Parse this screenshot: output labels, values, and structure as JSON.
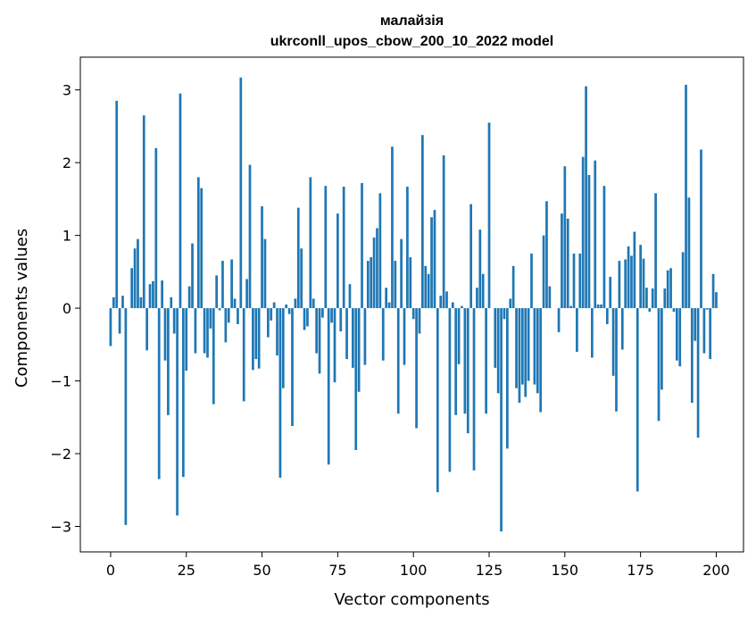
{
  "chart_data": {
    "type": "bar",
    "title_line1": "малайзія",
    "title_line2": "ukrconll_upos_cbow_200_10_2022 model",
    "xlabel": "Vector components",
    "ylabel": "Components values",
    "xlim": [
      -10,
      209
    ],
    "ylim": [
      -3.35,
      3.45
    ],
    "xticks": [
      0,
      25,
      50,
      75,
      100,
      125,
      150,
      175,
      200
    ],
    "yticks": [
      -3,
      -2,
      -1,
      0,
      1,
      2,
      3
    ],
    "xtick_labels": [
      "0",
      "25",
      "50",
      "75",
      "100",
      "125",
      "150",
      "175",
      "200"
    ],
    "ytick_labels": [
      "−3",
      "−2",
      "−1",
      "0",
      "1",
      "2",
      "3"
    ],
    "grid": false,
    "bar_color": "#1f77b4",
    "values": [
      -0.52,
      0.15,
      2.85,
      -0.35,
      0.17,
      -2.98,
      0.0,
      0.55,
      0.82,
      0.95,
      0.15,
      2.65,
      -0.58,
      0.33,
      0.37,
      2.2,
      -2.35,
      0.38,
      -0.72,
      -1.47,
      0.15,
      -0.35,
      -2.85,
      2.95,
      -2.32,
      -0.86,
      0.3,
      0.89,
      -0.62,
      1.8,
      1.65,
      -0.62,
      -0.68,
      -0.28,
      -1.32,
      0.45,
      -0.03,
      0.65,
      -0.47,
      -0.2,
      0.67,
      0.13,
      -0.22,
      3.17,
      -1.28,
      0.4,
      1.97,
      -0.85,
      -0.7,
      -0.83,
      1.4,
      0.95,
      -0.4,
      -0.17,
      0.08,
      -0.65,
      -2.33,
      -1.1,
      0.05,
      -0.08,
      -1.62,
      0.13,
      1.38,
      0.82,
      -0.3,
      -0.25,
      1.8,
      0.13,
      -0.62,
      -0.9,
      -0.13,
      1.68,
      -2.15,
      -0.2,
      -1.02,
      1.3,
      -0.32,
      1.67,
      -0.7,
      0.33,
      -0.82,
      -1.95,
      -1.15,
      1.72,
      -0.78,
      0.65,
      0.7,
      0.97,
      1.1,
      1.58,
      -0.72,
      0.28,
      0.08,
      2.22,
      0.65,
      -1.45,
      0.95,
      -0.78,
      1.67,
      0.7,
      -0.15,
      -1.65,
      -0.35,
      2.38,
      0.58,
      0.47,
      1.25,
      1.35,
      -2.53,
      0.17,
      2.1,
      0.23,
      -2.25,
      0.08,
      -1.47,
      -0.77,
      0.03,
      -1.45,
      -1.72,
      1.43,
      -2.23,
      0.28,
      1.08,
      0.47,
      -1.45,
      2.55,
      0.0,
      -0.82,
      -1.17,
      -3.07,
      -0.15,
      -1.93,
      0.13,
      0.58,
      -1.1,
      -1.3,
      -1.05,
      -1.22,
      -1.0,
      0.75,
      -1.05,
      -1.17,
      -1.43,
      1.0,
      1.47,
      0.3,
      0.0,
      0.0,
      -0.33,
      1.3,
      1.95,
      1.23,
      0.03,
      0.75,
      -0.6,
      0.75,
      2.08,
      3.05,
      1.83,
      -0.68,
      2.03,
      0.05,
      0.05,
      1.68,
      -0.22,
      0.43,
      -0.93,
      -1.42,
      0.65,
      -0.57,
      0.67,
      0.85,
      0.72,
      1.05,
      -2.52,
      0.87,
      0.68,
      0.28,
      -0.05,
      0.27,
      1.58,
      -1.55,
      -1.12,
      0.27,
      0.52,
      0.55,
      -0.05,
      -0.72,
      -0.8,
      0.77,
      3.07,
      1.52,
      -1.3,
      -0.45,
      -1.78,
      2.18,
      -0.62,
      -0.02,
      -0.7,
      0.47,
      0.22
    ]
  }
}
